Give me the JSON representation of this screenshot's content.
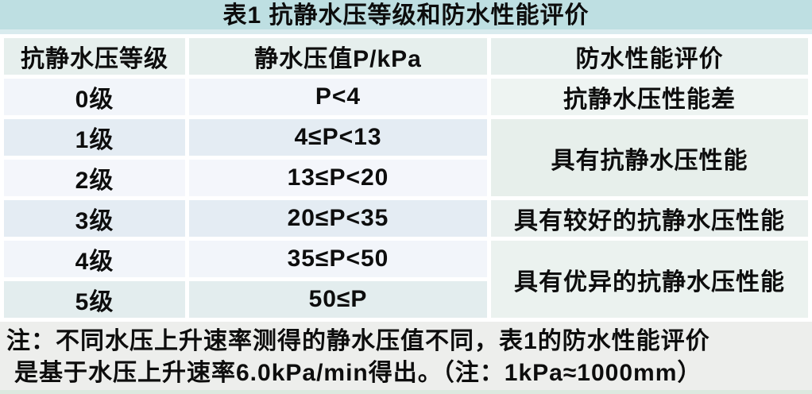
{
  "table": {
    "title": "表1 抗静水压等级和防水性能评价",
    "columns": [
      "抗静水压等级",
      "静水压值P/kPa",
      "防水性能评价"
    ],
    "rows": [
      {
        "grade": "0级",
        "pressure": "P<4",
        "evaluation": "抗静水压性能差"
      },
      {
        "grade": "1级",
        "pressure": "4≤P<13",
        "evaluation": "具有抗静水压性能"
      },
      {
        "grade": "2级",
        "pressure": "13≤P<20",
        "evaluation": "具有抗静水压性能"
      },
      {
        "grade": "3级",
        "pressure": "20≤P<35",
        "evaluation": "具有较好的抗静水压性能"
      },
      {
        "grade": "4级",
        "pressure": "35≤P<50",
        "evaluation": "具有优异的抗静水压性能"
      },
      {
        "grade": "5级",
        "pressure": "50≤P",
        "evaluation": "具有优异的抗静水压性能"
      }
    ]
  },
  "note": {
    "line1_a": "注：不同水压上升速率测得的静水压值不同，表",
    "line1_num": "1",
    "line1_b": "的防水性能评价",
    "line2_a": "是基于水压上升速率",
    "line2_rate": "6.0kPa/min",
    "line2_b": "得出。（注：",
    "line2_approx": "1kPa≈1000mm",
    "line2_c": "）"
  },
  "palette": {
    "title_bg": "#bedfe2",
    "header_bg": "#e6efed",
    "row_light_bg": "#f2f5fa",
    "row_shade_bg": "#e4ecf3",
    "eval_merged_bg": "#e7efeb",
    "note_bg": "#edeeec",
    "bottom_strip": "#dce9df",
    "text": "#0d0d0d",
    "gap": "#ffffff"
  },
  "chart_data": {
    "type": "table",
    "title": "表1 抗静水压等级和防水性能评价",
    "columns": [
      "抗静水压等级",
      "静水压值P/kPa",
      "防水性能评价"
    ],
    "rows": [
      [
        "0级",
        "P<4",
        "抗静水压性能差"
      ],
      [
        "1级",
        "4≤P<13",
        "具有抗静水压性能"
      ],
      [
        "2级",
        "13≤P<20",
        "具有抗静水压性能"
      ],
      [
        "3级",
        "20≤P<35",
        "具有较好的抗静水压性能"
      ],
      [
        "4级",
        "35≤P<50",
        "具有优异的抗静水压性能"
      ],
      [
        "5级",
        "50≤P",
        "具有优异的抗静水压性能"
      ]
    ],
    "merged_cells": [
      {
        "column": "防水性能评价",
        "rows": [
          1,
          2
        ],
        "value": "具有抗静水压性能"
      },
      {
        "column": "防水性能评价",
        "rows": [
          4,
          5
        ],
        "value": "具有优异的抗静水压性能"
      }
    ],
    "note": "注：不同水压上升速率测得的静水压值不同，表1的防水性能评价是基于水压上升速率6.0kPa/min得出。（注：1kPa≈1000mm）",
    "layout_hints": {
      "grid": "white cell gaps",
      "alternating_row_tint": true
    }
  }
}
